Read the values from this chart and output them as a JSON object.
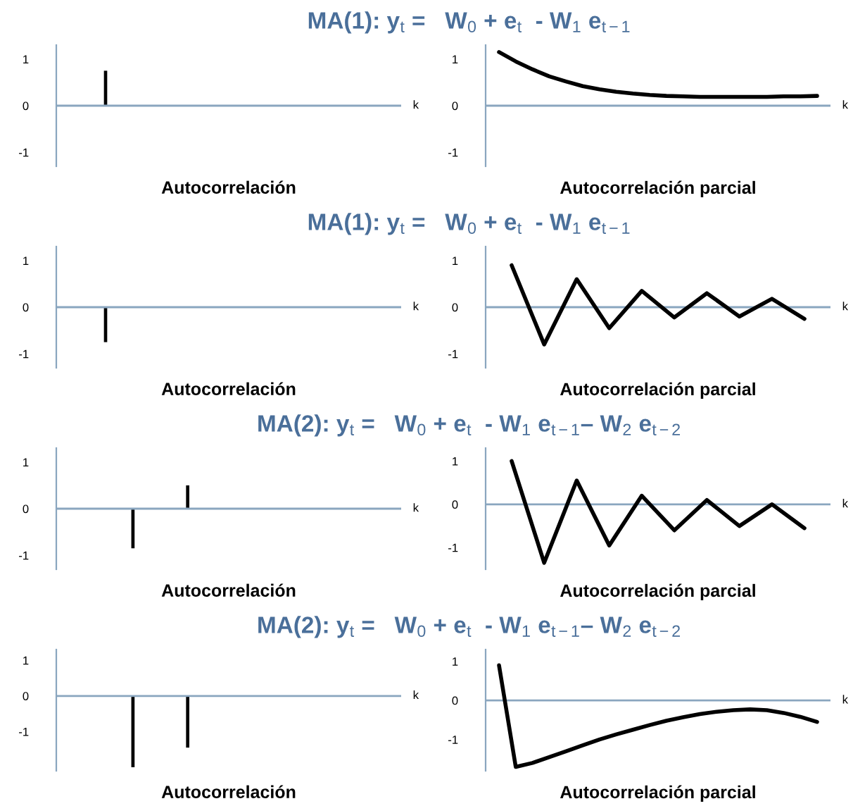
{
  "chart_data": [
    {
      "type": "bar",
      "subtitle": "MA(1): y$_{t}$ =   W$_{0}$ + e$_{t}$  - W$_{1}$ e$_{t−1}$",
      "title": "Autocorrelación",
      "xlabel": "k",
      "tick_labels": "y",
      "color": "#000000",
      "ylim": [
        -1.3,
        1.3
      ],
      "yticks": [
        -1,
        0,
        1
      ],
      "ref_lines": [
        {
          "axis": "y",
          "value": 0,
          "color": "#8aa6bf"
        }
      ],
      "categories": [
        null,
        null,
        null,
        null,
        null,
        null,
        null,
        null,
        null,
        null,
        null,
        null
      ],
      "values": [
        null,
        0.75,
        null,
        null,
        null,
        null,
        null,
        null,
        null,
        null,
        null,
        null
      ]
    },
    {
      "type": "line",
      "title": "Autocorrelación parcial",
      "xlabel": "k",
      "tick_labels": "y",
      "color": "#000000",
      "ylim": [
        -1.3,
        1.3
      ],
      "yticks": [
        -1,
        0,
        1
      ],
      "ref_lines": [
        {
          "axis": "y",
          "value": 0,
          "color": "#8aa6bf"
        }
      ],
      "categories": [
        null,
        null,
        null,
        null,
        null,
        null,
        null,
        null,
        null,
        null,
        null,
        null,
        null,
        null,
        null,
        null,
        null,
        null,
        null,
        null
      ],
      "values": [
        1.15,
        0.95,
        0.78,
        0.63,
        0.52,
        0.42,
        0.35,
        0.3,
        0.26,
        0.23,
        0.21,
        0.2,
        0.19,
        0.19,
        0.19,
        0.19,
        0.19,
        0.2,
        0.2,
        0.21
      ]
    },
    {
      "type": "bar",
      "subtitle": "MA(1): y$_{t}$ =   W$_{0}$ + e$_{t}$  - W$_{1}$ e$_{t−1}$",
      "title": "Autocorrelación",
      "xlabel": "k",
      "tick_labels": "y",
      "color": "#000000",
      "ylim": [
        -1.3,
        1.3
      ],
      "yticks": [
        -1,
        0,
        1
      ],
      "ref_lines": [
        {
          "axis": "y",
          "value": 0,
          "color": "#8aa6bf"
        }
      ],
      "categories": [
        null,
        null,
        null,
        null,
        null,
        null,
        null,
        null,
        null,
        null,
        null,
        null
      ],
      "values": [
        null,
        -0.75,
        null,
        null,
        null,
        null,
        null,
        null,
        null,
        null,
        null,
        null
      ]
    },
    {
      "type": "line",
      "title": "Autocorrelación parcial",
      "xlabel": "k",
      "tick_labels": "y",
      "color": "#000000",
      "ylim": [
        -1.3,
        1.3
      ],
      "yticks": [
        -1,
        0,
        1
      ],
      "ref_lines": [
        {
          "axis": "y",
          "value": 0,
          "color": "#8aa6bf"
        }
      ],
      "categories": [
        null,
        null,
        null,
        null,
        null,
        null,
        null,
        null,
        null,
        null
      ],
      "values": [
        0.9,
        -0.8,
        0.6,
        -0.45,
        0.35,
        -0.22,
        0.3,
        -0.2,
        0.18,
        -0.25
      ]
    },
    {
      "type": "bar",
      "subtitle": "MA(2): y$_{t}$ =   W$_{0}$ + e$_{t}$  - W$_{1}$ e$_{t−1}$– W$_{2}$ e$_{t−2}$",
      "title": "Autocorrelación",
      "xlabel": "k",
      "tick_labels": "y",
      "color": "#000000",
      "ylim": [
        -1.3,
        1.3
      ],
      "yticks": [
        -1,
        0,
        1
      ],
      "ref_lines": [
        {
          "axis": "y",
          "value": 0,
          "color": "#8aa6bf"
        }
      ],
      "categories": [
        null,
        null,
        null,
        null,
        null,
        null,
        null,
        null,
        null,
        null,
        null,
        null
      ],
      "values": [
        null,
        null,
        -0.85,
        null,
        0.5,
        null,
        null,
        null,
        null,
        null,
        null,
        null
      ]
    },
    {
      "type": "line",
      "title": "Autocorrelación parcial",
      "xlabel": "k",
      "tick_labels": "y",
      "color": "#000000",
      "ylim": [
        -1.5,
        1.3
      ],
      "yticks": [
        -1,
        0,
        1
      ],
      "ref_lines": [
        {
          "axis": "y",
          "value": 0,
          "color": "#8aa6bf"
        }
      ],
      "categories": [
        null,
        null,
        null,
        null,
        null,
        null,
        null,
        null,
        null,
        null
      ],
      "values": [
        1.0,
        -1.35,
        0.55,
        -0.95,
        0.2,
        -0.6,
        0.1,
        -0.5,
        0.0,
        -0.55
      ]
    },
    {
      "type": "bar",
      "subtitle": "MA(2): y$_{t}$ =   W$_{0}$ + e$_{t}$  - W$_{1}$ e$_{t−1}$– W$_{2}$ e$_{t−2}$",
      "title": "Autocorrelación",
      "xlabel": "k",
      "tick_labels": "y",
      "color": "#000000",
      "ylim": [
        -2.1,
        1.3
      ],
      "yticks": [
        -1,
        0,
        1
      ],
      "ref_lines": [
        {
          "axis": "y",
          "value": 0,
          "color": "#8aa6bf"
        }
      ],
      "categories": [
        null,
        null,
        null,
        null,
        null,
        null,
        null,
        null,
        null,
        null,
        null,
        null
      ],
      "values": [
        null,
        null,
        -2.0,
        null,
        -1.45,
        null,
        null,
        null,
        null,
        null,
        null,
        null
      ]
    },
    {
      "type": "line",
      "title": "Autocorrelación parcial",
      "xlabel": "k",
      "tick_labels": "y",
      "color": "#000000",
      "ylim": [
        -1.8,
        1.3
      ],
      "yticks": [
        -1,
        0,
        1
      ],
      "ref_lines": [
        {
          "axis": "y",
          "value": 0,
          "color": "#8aa6bf"
        }
      ],
      "categories": [
        null,
        null,
        null,
        null,
        null,
        null,
        null,
        null,
        null,
        null,
        null,
        null,
        null,
        null,
        null,
        null,
        null,
        null,
        null,
        null
      ],
      "values": [
        0.9,
        -1.7,
        -1.6,
        -1.45,
        -1.3,
        -1.15,
        -1.0,
        -0.87,
        -0.75,
        -0.63,
        -0.52,
        -0.43,
        -0.35,
        -0.29,
        -0.25,
        -0.23,
        -0.25,
        -0.32,
        -0.42,
        -0.55
      ]
    }
  ]
}
